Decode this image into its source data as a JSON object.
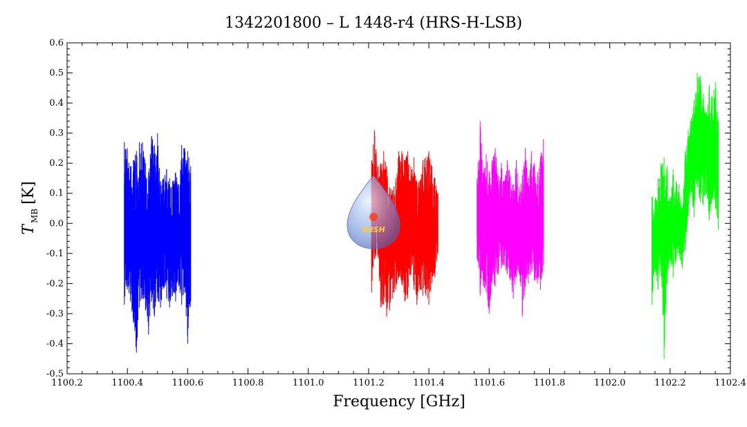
{
  "chart_data": {
    "type": "line",
    "title": "1342201800 – L 1448-r4 (HRS-H-LSB)",
    "xlabel": "Frequency [GHz]",
    "ylabel_main": "T",
    "ylabel_sub": "MB",
    "ylabel_unit": "[K]",
    "xlim": [
      1100.2,
      1102.4
    ],
    "ylim": [
      -0.5,
      0.6
    ],
    "xticks": [
      "1100.2",
      "1100.4",
      "1100.6",
      "1100.8",
      "1101.0",
      "1101.2",
      "1101.4",
      "1101.6",
      "1101.8",
      "1102.0",
      "1102.2",
      "1102.4"
    ],
    "yticks": [
      "-0.5",
      "-0.4",
      "-0.3",
      "-0.2",
      "-0.1",
      "0.0",
      "0.1",
      "0.2",
      "0.3",
      "0.4",
      "0.5",
      "0.6"
    ],
    "grid": false,
    "logo_text": "WISH",
    "series": [
      {
        "color": "#0000ff",
        "x": [
          1100.39,
          1100.4,
          1100.41,
          1100.42,
          1100.43,
          1100.44,
          1100.45,
          1100.46,
          1100.47,
          1100.48,
          1100.49,
          1100.5,
          1100.51,
          1100.52,
          1100.53,
          1100.54,
          1100.55,
          1100.56,
          1100.57,
          1100.58,
          1100.59,
          1100.6,
          1100.61
        ],
        "min": [
          -0.27,
          -0.22,
          -0.26,
          -0.33,
          -0.43,
          -0.28,
          -0.25,
          -0.29,
          -0.37,
          -0.26,
          -0.31,
          -0.25,
          -0.28,
          -0.21,
          -0.25,
          -0.28,
          -0.24,
          -0.26,
          -0.21,
          -0.27,
          -0.23,
          -0.4,
          -0.26
        ],
        "max": [
          0.27,
          0.25,
          0.19,
          0.21,
          0.24,
          0.27,
          0.27,
          0.2,
          0.17,
          0.29,
          0.26,
          0.3,
          0.14,
          0.15,
          0.18,
          0.15,
          0.14,
          0.17,
          0.13,
          0.26,
          0.25,
          0.24,
          0.19
        ]
      },
      {
        "color": "#ff0000",
        "x": [
          1101.21,
          1101.22,
          1101.23,
          1101.24,
          1101.25,
          1101.26,
          1101.27,
          1101.28,
          1101.29,
          1101.3,
          1101.31,
          1101.32,
          1101.33,
          1101.34,
          1101.35,
          1101.36,
          1101.37,
          1101.38,
          1101.39,
          1101.4,
          1101.41,
          1101.42,
          1101.43
        ],
        "min": [
          -0.23,
          -0.12,
          -0.1,
          -0.28,
          -0.27,
          -0.31,
          -0.29,
          -0.25,
          -0.22,
          -0.18,
          -0.2,
          -0.26,
          -0.25,
          -0.17,
          -0.22,
          -0.27,
          -0.22,
          -0.24,
          -0.24,
          -0.27,
          -0.2,
          -0.18,
          -0.1
        ],
        "max": [
          0.21,
          0.31,
          0.19,
          0.2,
          0.24,
          0.19,
          0.12,
          0.11,
          0.15,
          0.24,
          0.24,
          0.21,
          0.24,
          0.19,
          0.22,
          0.14,
          0.14,
          0.21,
          0.22,
          0.24,
          0.19,
          0.15,
          0.1
        ]
      },
      {
        "color": "#ff00ff",
        "x": [
          1101.56,
          1101.57,
          1101.58,
          1101.59,
          1101.6,
          1101.61,
          1101.62,
          1101.63,
          1101.64,
          1101.65,
          1101.66,
          1101.67,
          1101.68,
          1101.69,
          1101.7,
          1101.71,
          1101.72,
          1101.73,
          1101.74,
          1101.75,
          1101.76,
          1101.77,
          1101.78
        ],
        "min": [
          -0.12,
          -0.24,
          -0.21,
          -0.23,
          -0.3,
          -0.19,
          -0.21,
          -0.17,
          -0.15,
          -0.14,
          -0.17,
          -0.19,
          -0.25,
          -0.18,
          -0.17,
          -0.31,
          -0.21,
          -0.2,
          -0.16,
          -0.19,
          -0.2,
          -0.22,
          -0.14
        ],
        "max": [
          0.15,
          0.34,
          0.17,
          0.23,
          0.17,
          0.21,
          0.25,
          0.16,
          0.2,
          0.14,
          0.21,
          0.16,
          0.13,
          0.21,
          0.12,
          0.16,
          0.25,
          0.15,
          0.24,
          0.2,
          0.17,
          0.22,
          0.28
        ]
      },
      {
        "color": "#00ff00",
        "x": [
          1102.14,
          1102.15,
          1102.16,
          1102.17,
          1102.18,
          1102.19,
          1102.2,
          1102.21,
          1102.22,
          1102.23,
          1102.24,
          1102.25,
          1102.26,
          1102.27,
          1102.28,
          1102.29,
          1102.3,
          1102.31,
          1102.32,
          1102.33,
          1102.34,
          1102.35,
          1102.36
        ],
        "min": [
          -0.27,
          -0.15,
          -0.22,
          -0.16,
          -0.45,
          -0.2,
          -0.13,
          -0.18,
          -0.12,
          -0.11,
          -0.15,
          -0.09,
          0.03,
          0.1,
          0.02,
          0.12,
          0.07,
          0.06,
          0.1,
          0.01,
          0.08,
          0.05,
          -0.02
        ],
        "max": [
          0.09,
          0.08,
          0.15,
          0.2,
          0.22,
          0.19,
          0.09,
          0.18,
          0.14,
          0.13,
          0.05,
          0.24,
          0.31,
          0.35,
          0.41,
          0.5,
          0.49,
          0.43,
          0.37,
          0.46,
          0.42,
          0.47,
          0.34
        ]
      }
    ]
  }
}
